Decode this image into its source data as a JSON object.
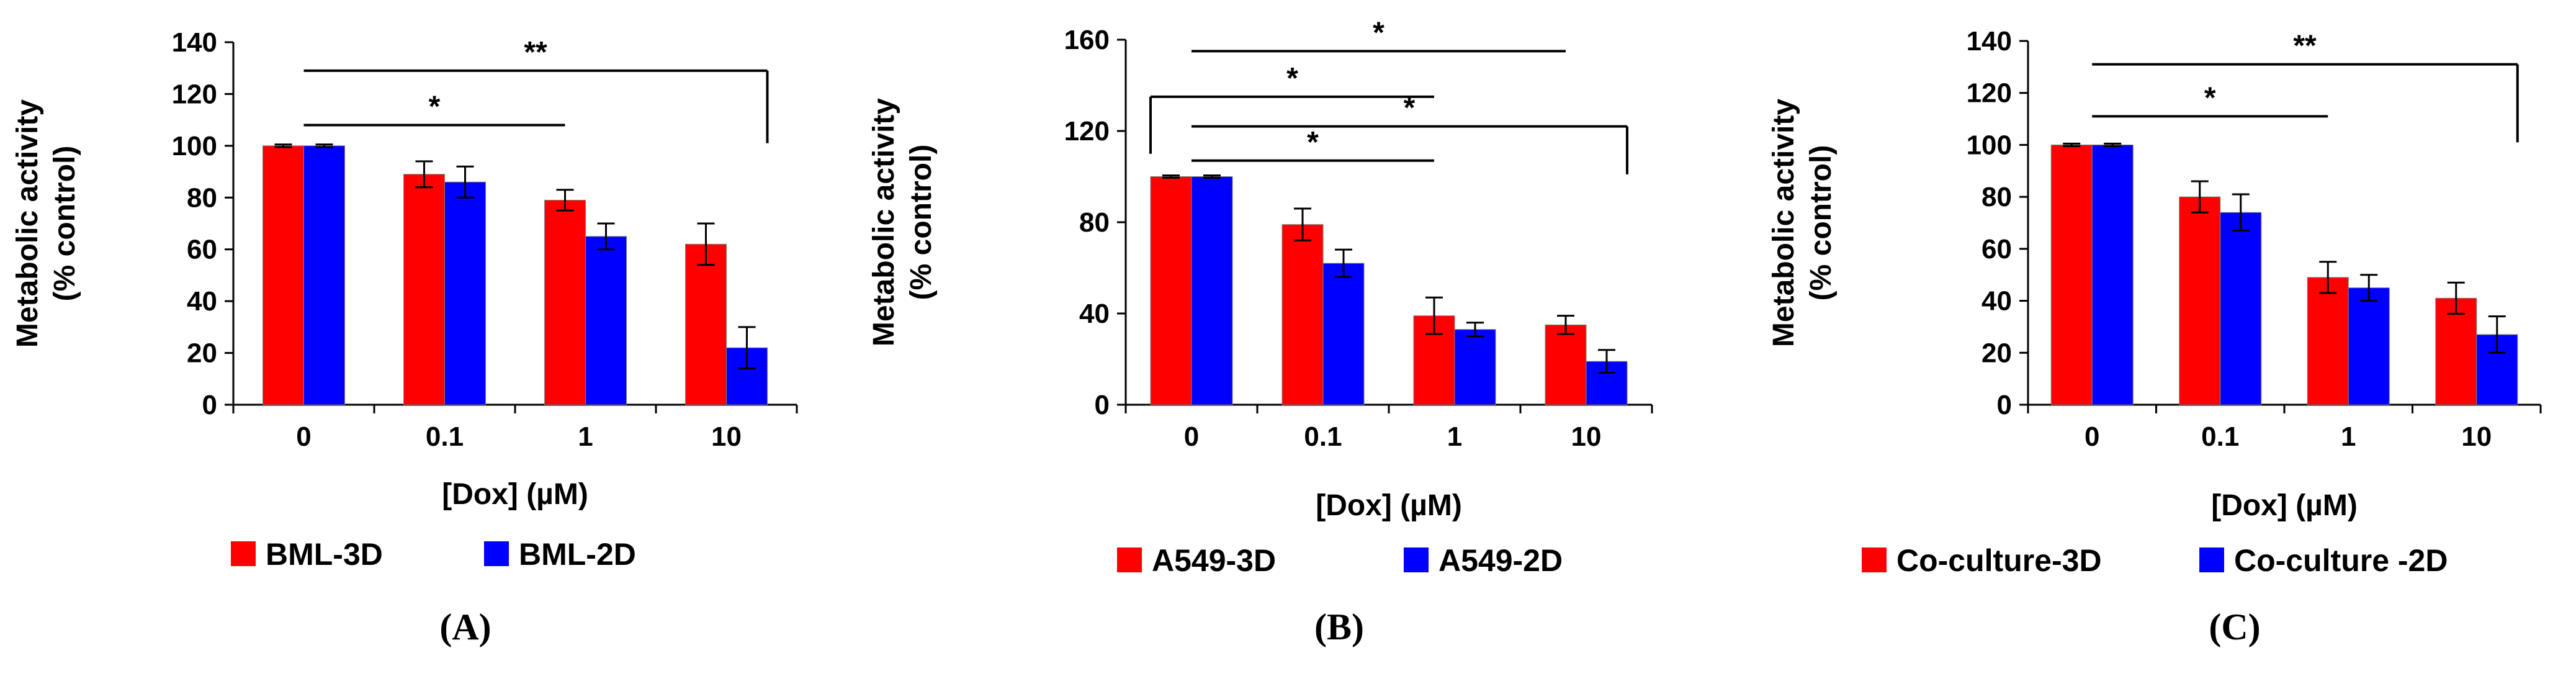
{
  "colors": {
    "series_3d": "#ff0000",
    "series_2d": "#0000ff",
    "axis": "#000000",
    "bar_outline": "#7f7f7f"
  },
  "chart_data": [
    {
      "type": "bar",
      "panel_label": "(A)",
      "categories": [
        "0",
        "0.1",
        "1",
        "10"
      ],
      "xlabel": "[Dox] (µM)",
      "ylabel": [
        "Metabolic activity",
        "(% control)"
      ],
      "ylim": [
        0,
        140
      ],
      "yticks": [
        "0",
        "20",
        "40",
        "60",
        "80",
        "100",
        "120",
        "140"
      ],
      "grid": false,
      "legend_position": "bottom-left",
      "series": [
        {
          "name": "BML-3D",
          "values": [
            100,
            89,
            79,
            62
          ],
          "errors": [
            0.5,
            5,
            4,
            8
          ]
        },
        {
          "name": "BML-2D",
          "values": [
            100,
            86,
            65,
            22
          ],
          "errors": [
            0.5,
            6,
            5,
            8
          ]
        }
      ],
      "significance": [
        {
          "label": "**",
          "from_category": "0",
          "to_category": "10",
          "level": 129,
          "left_drop": false,
          "right_drop": true,
          "right_end": 101
        },
        {
          "label": "*",
          "from_category": "0",
          "to_category": "1",
          "level": 108,
          "left_drop": false,
          "right_drop": false
        }
      ]
    },
    {
      "type": "bar",
      "panel_label": "(B)",
      "categories": [
        "0",
        "0.1",
        "1",
        "10"
      ],
      "xlabel": "[Dox] (µM)",
      "ylabel": [
        "Metabolic activity",
        "(% control)"
      ],
      "ylim": [
        0,
        160
      ],
      "yticks": [
        "0",
        "40",
        "80",
        "120",
        "160"
      ],
      "grid": false,
      "legend_position": "bottom-left",
      "series": [
        {
          "name": "A549-3D",
          "values": [
            100,
            79,
            39,
            35
          ],
          "errors": [
            0.5,
            7,
            8,
            4
          ]
        },
        {
          "name": "A549-2D",
          "values": [
            100,
            62,
            33,
            19
          ],
          "errors": [
            0.5,
            6,
            3,
            5
          ]
        }
      ],
      "significance": [
        {
          "label": "*",
          "from_category": "0",
          "to_category": "10",
          "level": 155,
          "left_drop": false,
          "right_drop": false
        },
        {
          "label": "*",
          "from_category": "0",
          "to_category": "1",
          "level": 135,
          "left_drop": true,
          "right_drop": false,
          "left_end": 110
        },
        {
          "label": "*",
          "from_category": "0",
          "to_category": "10",
          "level": 122,
          "left_drop": false,
          "right_drop": true,
          "right_end": 101
        },
        {
          "label": "*",
          "from_category": "0",
          "to_category": "1",
          "level": 107,
          "left_drop": false,
          "right_drop": false
        }
      ]
    },
    {
      "type": "bar",
      "panel_label": "(C)",
      "categories": [
        "0",
        "0.1",
        "1",
        "10"
      ],
      "xlabel": "[Dox] (µM)",
      "ylabel": [
        "Metabolic activity",
        "(% control)"
      ],
      "ylim": [
        0,
        140
      ],
      "yticks": [
        "0",
        "20",
        "40",
        "60",
        "80",
        "100",
        "120",
        "140"
      ],
      "grid": false,
      "legend_position": "bottom-left",
      "series": [
        {
          "name": "Co-culture-3D",
          "values": [
            100,
            80,
            49,
            41
          ],
          "errors": [
            0.5,
            6,
            6,
            6
          ]
        },
        {
          "name": "Co-culture -2D",
          "values": [
            100,
            74,
            45,
            27
          ],
          "errors": [
            0.5,
            7,
            5,
            7
          ]
        }
      ],
      "significance": [
        {
          "label": "**",
          "from_category": "0",
          "to_category": "10",
          "level": 131,
          "left_drop": false,
          "right_drop": true,
          "right_end": 101
        },
        {
          "label": "*",
          "from_category": "0",
          "to_category": "1",
          "level": 111,
          "left_drop": false,
          "right_drop": false
        }
      ]
    }
  ]
}
